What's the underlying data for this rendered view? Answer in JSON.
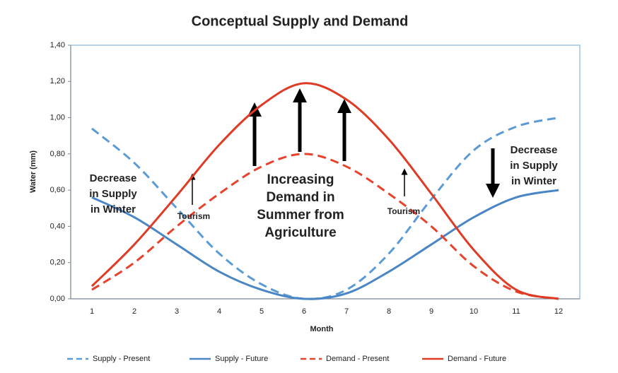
{
  "chart_data": {
    "type": "line",
    "title": "Conceptual Supply and Demand",
    "x_label": "Month",
    "y_label": "Water (mm)",
    "categories": [
      "1",
      "2",
      "3",
      "4",
      "5",
      "6",
      "7",
      "8",
      "9",
      "10",
      "11",
      "12"
    ],
    "ylim": [
      0,
      1.4
    ],
    "yticks": [
      {
        "value": 0,
        "label": "0,00"
      },
      {
        "value": 0.2,
        "label": "0,20"
      },
      {
        "value": 0.4,
        "label": "0,40"
      },
      {
        "value": 0.6,
        "label": "0,60"
      },
      {
        "value": 0.8,
        "label": "0,80"
      },
      {
        "value": 1.0,
        "label": "1,00"
      },
      {
        "value": 1.2,
        "label": "1,20"
      },
      {
        "value": 1.4,
        "label": "1,40"
      }
    ],
    "grid": false,
    "series": [
      {
        "name": "Supply - Present",
        "color": "#5b9bd5",
        "dashed": true,
        "values": [
          0.94,
          0.75,
          0.5,
          0.25,
          0.08,
          0.0,
          0.05,
          0.25,
          0.55,
          0.82,
          0.95,
          1.0
        ]
      },
      {
        "name": "Supply - Future",
        "color": "#4a86c5",
        "dashed": false,
        "values": [
          0.56,
          0.45,
          0.3,
          0.15,
          0.05,
          0.0,
          0.03,
          0.15,
          0.3,
          0.45,
          0.56,
          0.6
        ]
      },
      {
        "name": "Demand - Present",
        "color": "#e8412c",
        "dashed": true,
        "values": [
          0.05,
          0.2,
          0.4,
          0.58,
          0.73,
          0.8,
          0.73,
          0.58,
          0.4,
          0.18,
          0.04,
          0.0
        ]
      },
      {
        "name": "Demand - Future",
        "color": "#e03a24",
        "dashed": false,
        "values": [
          0.07,
          0.3,
          0.57,
          0.85,
          1.07,
          1.19,
          1.1,
          0.88,
          0.58,
          0.27,
          0.05,
          0.0
        ]
      }
    ],
    "annotations": [
      {
        "lines": [
          "Decrease",
          "in Supply",
          "in Winter"
        ]
      },
      {
        "lines": [
          "Tourism"
        ]
      },
      {
        "lines": [
          "Increasing",
          "Demand in",
          "Summer from",
          "Agriculture"
        ]
      },
      {
        "lines": [
          "Tourism"
        ]
      },
      {
        "lines": [
          "Decrease",
          "in Supply",
          "in Winter"
        ]
      }
    ]
  }
}
